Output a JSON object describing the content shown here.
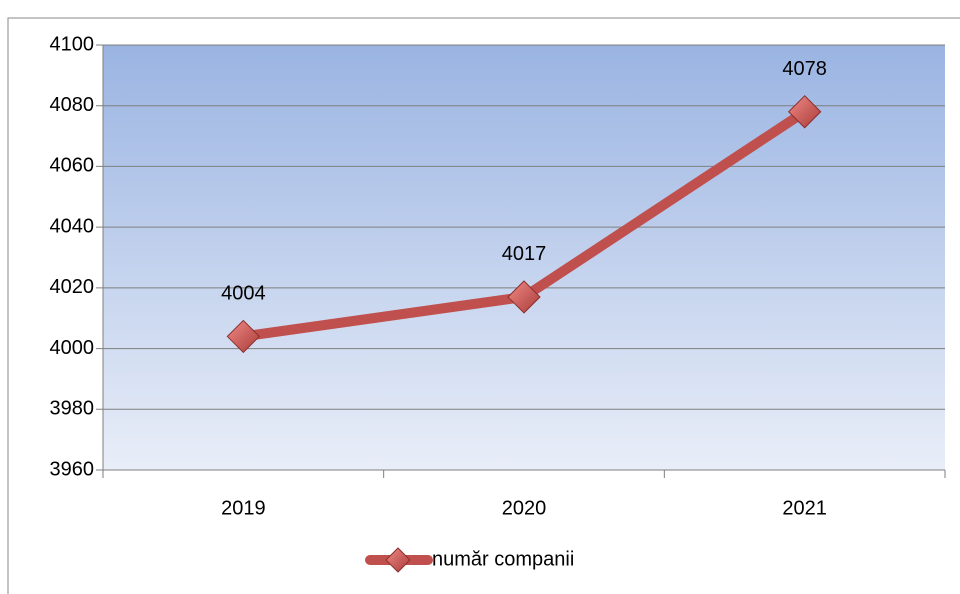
{
  "chart_data": {
    "type": "line",
    "categories": [
      "2019",
      "2020",
      "2021"
    ],
    "series": [
      {
        "name": "număr companii",
        "color": "#c0504d",
        "values": [
          4004,
          4017,
          4078
        ]
      }
    ],
    "ylim": [
      3960,
      4100
    ],
    "yticks": [
      3960,
      3980,
      4000,
      4020,
      4040,
      4060,
      4080,
      4100
    ],
    "grid": true,
    "legend": "bottom"
  }
}
